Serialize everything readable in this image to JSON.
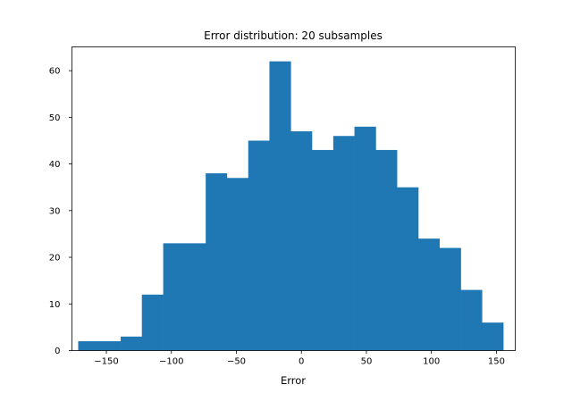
{
  "chart_data": {
    "type": "bar",
    "title": "Error distribution: 20 subsamples",
    "xlabel": "Error",
    "ylabel": "",
    "xlim": [
      -176.5,
      164.5
    ],
    "ylim": [
      0,
      65.1
    ],
    "xticks": [
      -150,
      -100,
      -50,
      0,
      50,
      100,
      150
    ],
    "xtick_labels": [
      "−150",
      "−100",
      "−50",
      "0",
      "50",
      "100",
      "150"
    ],
    "yticks": [
      0,
      10,
      20,
      30,
      40,
      50,
      60
    ],
    "ytick_labels": [
      "0",
      "10",
      "20",
      "30",
      "40",
      "50",
      "60"
    ],
    "bin_edges": [
      -171.7,
      -155.4,
      -139.0,
      -122.7,
      -106.3,
      -90.0,
      -73.6,
      -57.3,
      -40.9,
      -24.6,
      -8.2,
      8.1,
      24.5,
      40.8,
      57.2,
      73.5,
      89.9,
      106.2,
      122.6,
      138.9,
      155.3
    ],
    "values": [
      2,
      2,
      3,
      12,
      23,
      23,
      38,
      37,
      45,
      62,
      47,
      43,
      46,
      48,
      43,
      35,
      24,
      22,
      13,
      6
    ],
    "bar_color": "#1f77b4",
    "grid": false,
    "legend": "none"
  }
}
